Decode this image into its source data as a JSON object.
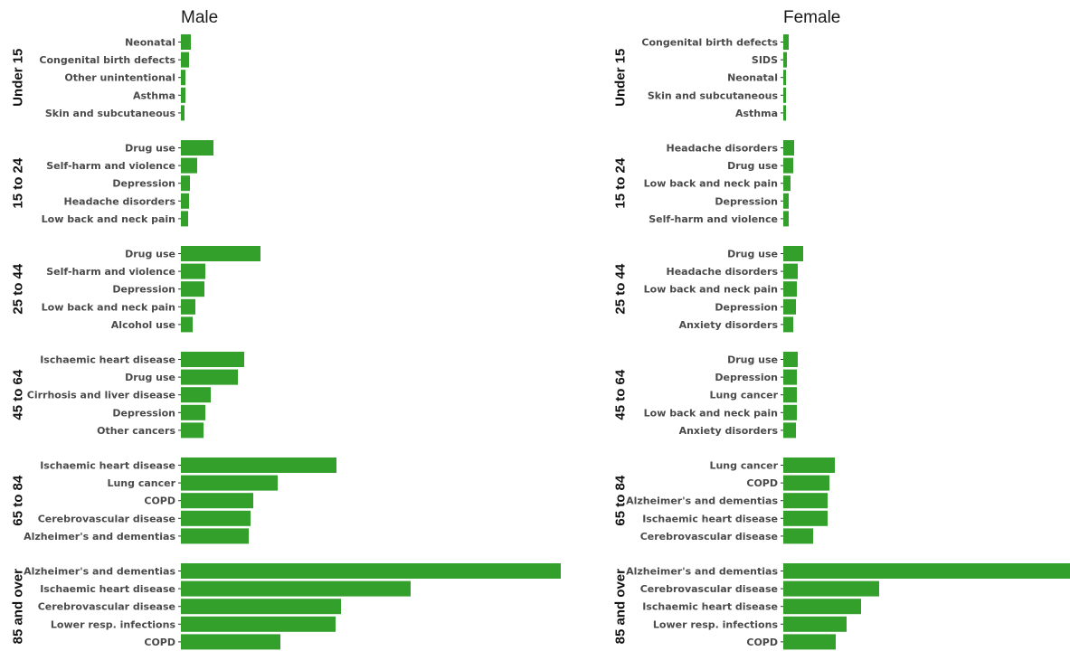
{
  "chart_data": {
    "type": "bar",
    "orientation": "horizontal",
    "bar_color": "#33a02c",
    "panels": [
      {
        "title": "Male",
        "groups": [
          {
            "label": "Under 15",
            "categories": [
              "Neonatal",
              "Congenital birth defects",
              "Other unintentional",
              "Asthma",
              "Skin and subcutaneous"
            ],
            "values": [
              11,
              9,
              5,
              5,
              4
            ]
          },
          {
            "label": "15 to 24",
            "categories": [
              "Drug use",
              "Self-harm and violence",
              "Depression",
              "Headache disorders",
              "Low back and neck pain"
            ],
            "values": [
              36,
              18,
              10,
              9,
              8
            ]
          },
          {
            "label": "25 to 44",
            "categories": [
              "Drug use",
              "Self-harm and violence",
              "Depression",
              "Low back and neck pain",
              "Alcohol use"
            ],
            "values": [
              88,
              27,
              26,
              16,
              13
            ]
          },
          {
            "label": "45 to 64",
            "categories": [
              "Ischaemic heart disease",
              "Drug use",
              "Cirrhosis and liver disease",
              "Depression",
              "Other cancers"
            ],
            "values": [
              70,
              63,
              33,
              27,
              25
            ]
          },
          {
            "label": "65 to 84",
            "categories": [
              "Ischaemic heart disease",
              "Lung cancer",
              "COPD",
              "Cerebrovascular disease",
              "Alzheimer's  and dementias"
            ],
            "values": [
              172,
              107,
              80,
              77,
              75
            ]
          },
          {
            "label": "85 and over",
            "categories": [
              "Alzheimer's  and dementias",
              "Ischaemic heart disease",
              "Cerebrovascular disease",
              "Lower resp. infections",
              "COPD"
            ],
            "values": [
              420,
              254,
              177,
              171,
              110
            ]
          }
        ]
      },
      {
        "title": "Female",
        "groups": [
          {
            "label": "Under 15",
            "categories": [
              "Congenital birth defects",
              "SIDS",
              "Neonatal",
              "Skin and subcutaneous",
              "Asthma"
            ],
            "values": [
              6,
              4,
              3,
              3,
              3
            ]
          },
          {
            "label": "15 to 24",
            "categories": [
              "Headache disorders",
              "Drug use",
              "Low back and neck pain",
              "Depression",
              "Self-harm and violence"
            ],
            "values": [
              12,
              11,
              8,
              6,
              6
            ]
          },
          {
            "label": "25 to 44",
            "categories": [
              "Drug use",
              "Headache disorders",
              "Low back and neck pain",
              "Depression",
              "Anxiety disorders"
            ],
            "values": [
              22,
              16,
              15,
              14,
              11
            ]
          },
          {
            "label": "45 to 64",
            "categories": [
              "Drug use",
              "Depression",
              "Lung cancer",
              "Low back and neck pain",
              "Anxiety disorders"
            ],
            "values": [
              16,
              15,
              15,
              15,
              14
            ]
          },
          {
            "label": "65 to 84",
            "categories": [
              "Lung cancer",
              "COPD",
              "Alzheimer's  and dementias",
              "Ischaemic heart disease",
              "Cerebrovascular disease"
            ],
            "values": [
              57,
              51,
              49,
              49,
              33
            ]
          },
          {
            "label": "85 and over",
            "categories": [
              "Alzheimer's  and dementias",
              "Cerebrovascular disease",
              "Ischaemic heart disease",
              "Lower resp. infections",
              "COPD"
            ],
            "values": [
              317,
              106,
              86,
              70,
              58
            ]
          }
        ]
      }
    ]
  }
}
